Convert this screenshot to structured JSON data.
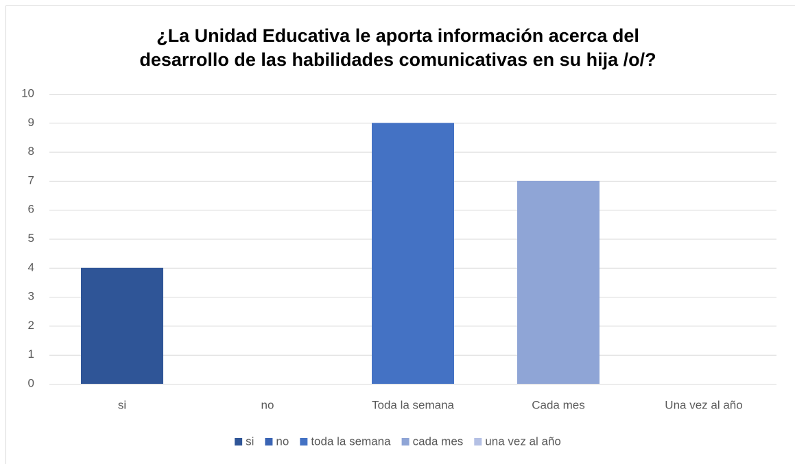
{
  "chart_data": {
    "type": "bar",
    "title": [
      "¿La Unidad Educativa le aporta información acerca del",
      "desarrollo de las habilidades comunicativas en su hija /o/?"
    ],
    "categories": [
      "si",
      "no",
      "Toda la semana",
      "Cada mes",
      "Una vez al año"
    ],
    "values": [
      4,
      0,
      9,
      7,
      0
    ],
    "colors": [
      "#2f5597",
      "#3a64b4",
      "#4472c4",
      "#8fa5d6",
      "#b4c0e4"
    ],
    "legend": [
      {
        "name": "si",
        "color": "#2f5597"
      },
      {
        "name": "no",
        "color": "#3a64b4"
      },
      {
        "name": "toda la semana",
        "color": "#4472c4"
      },
      {
        "name": "cada mes",
        "color": "#8fa5d6"
      },
      {
        "name": "una vez al año",
        "color": "#b4c0e4"
      }
    ],
    "ylim": [
      0,
      10
    ],
    "yticks": [
      0,
      1,
      2,
      3,
      4,
      5,
      6,
      7,
      8,
      9,
      10
    ],
    "grid": true
  }
}
